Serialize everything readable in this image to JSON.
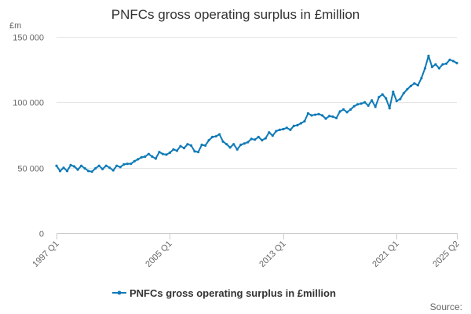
{
  "chart_data": {
    "type": "line",
    "title": "PNFCs gross operating surplus in £million",
    "ylabel": "£m",
    "xlabel": "",
    "ylim": [
      0,
      150000
    ],
    "yticks": [
      0,
      50000,
      100000,
      150000
    ],
    "ytick_labels": [
      "0",
      "50 000",
      "100 000",
      "150 000"
    ],
    "xlim": [
      1997.0,
      2025.25
    ],
    "xticks": [
      1997.0,
      2005.0,
      2013.0,
      2021.0,
      2025.25
    ],
    "xtick_labels": [
      "1997 Q1",
      "2005 Q1",
      "2013 Q1",
      "2021 Q1",
      "2025 Q2"
    ],
    "grid": true,
    "legend_position": "bottom-center",
    "series": [
      {
        "name": "PNFCs gross operating surplus in £million",
        "color": "#0f7ab8",
        "x": [
          1997.0,
          1997.25,
          1997.5,
          1997.75,
          1998.0,
          1998.25,
          1998.5,
          1998.75,
          1999.0,
          1999.25,
          1999.5,
          1999.75,
          2000.0,
          2000.25,
          2000.5,
          2000.75,
          2001.0,
          2001.25,
          2001.5,
          2001.75,
          2002.0,
          2002.25,
          2002.5,
          2002.75,
          2003.0,
          2003.25,
          2003.5,
          2003.75,
          2004.0,
          2004.25,
          2004.5,
          2004.75,
          2005.0,
          2005.25,
          2005.5,
          2005.75,
          2006.0,
          2006.25,
          2006.5,
          2006.75,
          2007.0,
          2007.25,
          2007.5,
          2007.75,
          2008.0,
          2008.25,
          2008.5,
          2008.75,
          2009.0,
          2009.25,
          2009.5,
          2009.75,
          2010.0,
          2010.25,
          2010.5,
          2010.75,
          2011.0,
          2011.25,
          2011.5,
          2011.75,
          2012.0,
          2012.25,
          2012.5,
          2012.75,
          2013.0,
          2013.25,
          2013.5,
          2013.75,
          2014.0,
          2014.25,
          2014.5,
          2014.75,
          2015.0,
          2015.25,
          2015.5,
          2015.75,
          2016.0,
          2016.25,
          2016.5,
          2016.75,
          2017.0,
          2017.25,
          2017.5,
          2017.75,
          2018.0,
          2018.25,
          2018.5,
          2018.75,
          2019.0,
          2019.25,
          2019.5,
          2019.75,
          2020.0,
          2020.25,
          2020.5,
          2020.75,
          2021.0,
          2021.25,
          2021.5,
          2021.75,
          2022.0,
          2022.25,
          2022.5,
          2022.75,
          2023.0,
          2023.25,
          2023.5,
          2023.75,
          2024.0,
          2024.25,
          2024.5,
          2024.75,
          2025.0,
          2025.25
        ],
        "values": [
          51500,
          47500,
          50000,
          47500,
          52000,
          51000,
          48500,
          51500,
          49500,
          47500,
          47000,
          49500,
          51500,
          49000,
          51500,
          50000,
          48000,
          51500,
          50500,
          52500,
          53000,
          53000,
          55000,
          56500,
          58000,
          58500,
          60500,
          58500,
          57000,
          62000,
          60500,
          60000,
          61500,
          64000,
          63000,
          66500,
          65000,
          68000,
          67000,
          62500,
          62000,
          67500,
          67000,
          71000,
          73500,
          74000,
          75500,
          70000,
          68000,
          65500,
          68000,
          64000,
          67500,
          68500,
          69500,
          72000,
          71500,
          73500,
          71000,
          72500,
          77000,
          74500,
          78000,
          79000,
          79500,
          80500,
          79000,
          82000,
          82500,
          84000,
          85500,
          91500,
          90000,
          90500,
          91000,
          90000,
          87500,
          89500,
          89000,
          88000,
          93000,
          94500,
          92500,
          94500,
          97000,
          98500,
          99000,
          100000,
          97500,
          101500,
          96500,
          104000,
          106000,
          103000,
          95500,
          108000,
          101000,
          102500,
          107000,
          110000,
          112500,
          114500,
          113000,
          118500,
          126000,
          135500,
          127000,
          129000,
          126000,
          129000,
          129500,
          132500,
          131500,
          130000
        ]
      }
    ]
  },
  "legend": {
    "label": "PNFCs gross operating surplus in £million"
  },
  "footer": {
    "source_label": "Source:"
  }
}
